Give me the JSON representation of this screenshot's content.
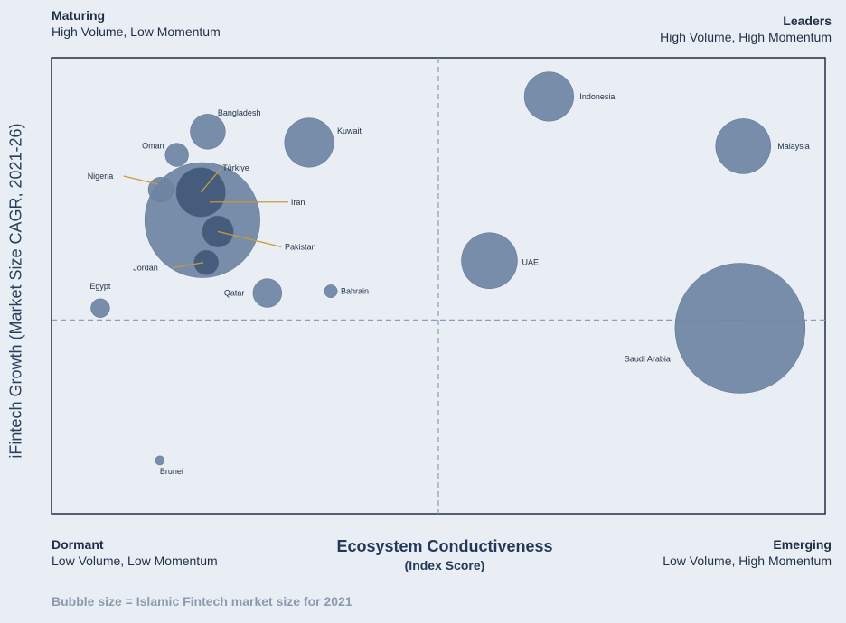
{
  "quadrants": {
    "top_left": {
      "title": "Maturing",
      "subtitle": "High Volume, Low Momentum"
    },
    "top_right": {
      "title": "Leaders",
      "subtitle": "High Volume, High Momentum"
    },
    "bottom_left": {
      "title": "Dormant",
      "subtitle": "Low Volume, Low Momentum"
    },
    "bottom_right": {
      "title": "Emerging",
      "subtitle": "Low Volume, High Momentum"
    }
  },
  "note": "Bubble size = Islamic Fintech market size for 2021",
  "colors": {
    "background": "#e9eef5",
    "bubble": "#6e84a3",
    "bubble_dark": "#3f5678",
    "leader_line": "#c99a3c",
    "divider": "#8aa0b8"
  },
  "chart_data": {
    "type": "bubble",
    "xlabel": "Ecosystem Conductiveness",
    "xlabel_sub": "(Index Score)",
    "ylabel": "iFintech Growth (Market Size CAGR, 2021-26)",
    "xlim": [
      0,
      100
    ],
    "ylim": [
      0,
      100
    ],
    "x_divider": 50,
    "y_divider": 42.5,
    "size_unit": "relative market size (Saudi Arabia = 100)",
    "points": [
      {
        "name": "Indonesia",
        "x": 64.3,
        "y": 91.5,
        "size": 14.4
      },
      {
        "name": "Malaysia",
        "x": 89.4,
        "y": 80.6,
        "size": 18.0
      },
      {
        "name": "Bangladesh",
        "x": 20.2,
        "y": 83.8,
        "size": 7.3
      },
      {
        "name": "Kuwait",
        "x": 33.3,
        "y": 81.4,
        "size": 14.4
      },
      {
        "name": "Oman",
        "x": 16.2,
        "y": 78.7,
        "size": 3.2
      },
      {
        "name": "Türkiye",
        "x": 19.3,
        "y": 70.5,
        "size": 14.4
      },
      {
        "name": "Nigeria",
        "x": 14.1,
        "y": 71.1,
        "size": 3.6
      },
      {
        "name": "Iran",
        "x": 19.5,
        "y": 64.4,
        "size": 78.4
      },
      {
        "name": "Pakistan",
        "x": 21.5,
        "y": 61.9,
        "size": 5.8
      },
      {
        "name": "Jordan",
        "x": 20.0,
        "y": 55.1,
        "size": 3.6
      },
      {
        "name": "UAE",
        "x": 56.6,
        "y": 55.5,
        "size": 18.6
      },
      {
        "name": "Egypt",
        "x": 6.3,
        "y": 45.1,
        "size": 2.1
      },
      {
        "name": "Qatar",
        "x": 27.9,
        "y": 48.4,
        "size": 4.9
      },
      {
        "name": "Bahrain",
        "x": 36.1,
        "y": 48.8,
        "size": 1.0
      },
      {
        "name": "Saudi Arabia",
        "x": 89.0,
        "y": 40.7,
        "size": 100.0
      },
      {
        "name": "Brunei",
        "x": 14.0,
        "y": 11.7,
        "size": 0.5
      }
    ]
  }
}
